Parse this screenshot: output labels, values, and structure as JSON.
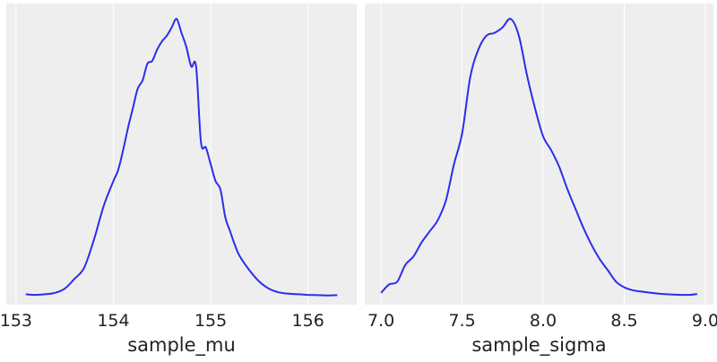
{
  "colors": {
    "panel_bg": "#eeeeee",
    "grid": "#ffffff",
    "line": "#2a2eec",
    "text": "#222222"
  },
  "chart_data": [
    {
      "type": "line",
      "xlabel": "sample_mu",
      "xlim": [
        152.9,
        156.5
      ],
      "ylim": [
        0,
        1.0
      ],
      "xticks": [
        153,
        154,
        155,
        156
      ],
      "xtick_labels": [
        "153",
        "154",
        "155",
        "156"
      ],
      "grid": "vertical",
      "y_axis_ticks": "none",
      "series": [
        {
          "x": [
            153.1,
            153.2,
            153.3,
            153.4,
            153.5,
            153.6,
            153.7,
            153.8,
            153.9,
            154.0,
            154.05,
            154.1,
            154.15,
            154.2,
            154.25,
            154.3,
            154.35,
            154.4,
            154.45,
            154.5,
            154.55,
            154.6,
            154.65,
            154.7,
            154.75,
            154.8,
            154.85,
            154.9,
            154.95,
            155.0,
            155.05,
            155.1,
            155.15,
            155.2,
            155.25,
            155.3,
            155.4,
            155.5,
            155.6,
            155.7,
            155.8,
            155.9,
            156.0,
            156.1,
            156.2,
            156.3
          ],
          "y": [
            0.005,
            0.003,
            0.005,
            0.01,
            0.025,
            0.06,
            0.1,
            0.2,
            0.32,
            0.41,
            0.45,
            0.52,
            0.6,
            0.67,
            0.74,
            0.77,
            0.83,
            0.84,
            0.88,
            0.91,
            0.93,
            0.96,
            0.99,
            0.94,
            0.89,
            0.82,
            0.82,
            0.55,
            0.53,
            0.47,
            0.41,
            0.38,
            0.28,
            0.23,
            0.18,
            0.14,
            0.09,
            0.05,
            0.025,
            0.012,
            0.007,
            0.005,
            0.003,
            0.002,
            0.001,
            0.002
          ]
        }
      ]
    },
    {
      "type": "line",
      "xlabel": "sample_sigma",
      "xlim": [
        6.9,
        9.05
      ],
      "ylim": [
        0,
        1.0
      ],
      "xticks": [
        7.0,
        7.5,
        8.0,
        8.5,
        9.0
      ],
      "xtick_labels": [
        "7.0",
        "7.5",
        "8.0",
        "8.5",
        "9.0"
      ],
      "grid": "vertical",
      "y_axis_ticks": "none",
      "series": [
        {
          "x": [
            7.0,
            7.05,
            7.1,
            7.15,
            7.2,
            7.25,
            7.3,
            7.35,
            7.4,
            7.45,
            7.5,
            7.55,
            7.6,
            7.65,
            7.7,
            7.75,
            7.8,
            7.85,
            7.9,
            7.95,
            8.0,
            8.05,
            8.1,
            8.15,
            8.2,
            8.25,
            8.3,
            8.35,
            8.4,
            8.45,
            8.5,
            8.55,
            8.6,
            8.7,
            8.8,
            8.9,
            8.95
          ],
          "y": [
            0.01,
            0.04,
            0.05,
            0.11,
            0.14,
            0.19,
            0.23,
            0.27,
            0.34,
            0.47,
            0.58,
            0.78,
            0.88,
            0.93,
            0.94,
            0.96,
            0.99,
            0.93,
            0.79,
            0.67,
            0.57,
            0.52,
            0.46,
            0.38,
            0.31,
            0.24,
            0.18,
            0.13,
            0.09,
            0.05,
            0.03,
            0.02,
            0.015,
            0.008,
            0.004,
            0.003,
            0.006
          ]
        }
      ]
    }
  ]
}
